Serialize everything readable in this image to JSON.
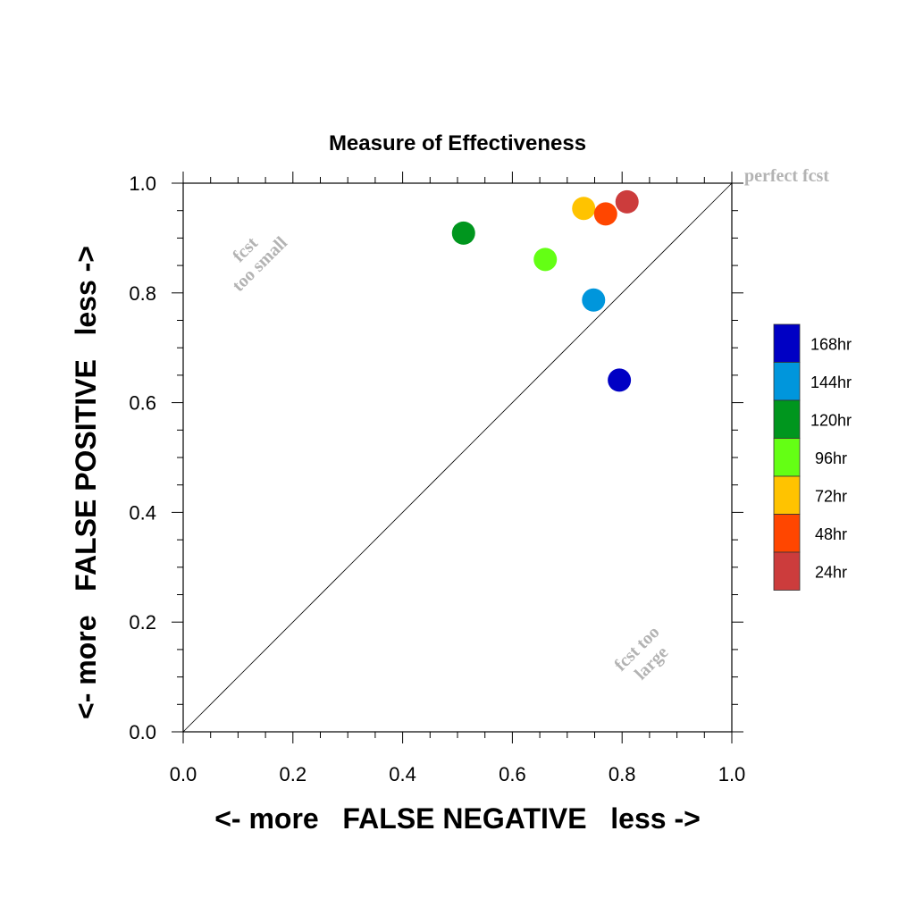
{
  "chart_data": {
    "type": "scatter",
    "title": "Measure of Effectiveness",
    "xlabel": "<- more   FALSE NEGATIVE   less ->",
    "ylabel": "<- more   FALSE POSITIVE   less ->",
    "xlim": [
      0,
      1
    ],
    "ylim": [
      0,
      1
    ],
    "xticks": [
      "0.0",
      "0.2",
      "0.4",
      "0.6",
      "0.8",
      "1.0"
    ],
    "yticks": [
      "0.0",
      "0.2",
      "0.4",
      "0.6",
      "0.8",
      "1.0"
    ],
    "grid": false,
    "legend_position": "right",
    "series": [
      {
        "name": "168hr",
        "color": "#0000c4",
        "x": 0.795,
        "y": 0.641
      },
      {
        "name": "144hr",
        "color": "#0096dc",
        "x": 0.748,
        "y": 0.787
      },
      {
        "name": "120hr",
        "color": "#00961e",
        "x": 0.511,
        "y": 0.909
      },
      {
        "name": "96hr",
        "color": "#64ff14",
        "x": 0.66,
        "y": 0.861
      },
      {
        "name": "72hr",
        "color": "#ffc300",
        "x": 0.73,
        "y": 0.954
      },
      {
        "name": "48hr",
        "color": "#ff4600",
        "x": 0.77,
        "y": 0.944
      },
      {
        "name": "24hr",
        "color": "#cc3c3c",
        "x": 0.809,
        "y": 0.966
      }
    ],
    "annotations": {
      "perfect": "perfect fcst",
      "small_line1": "fcst",
      "small_line2": "too small",
      "large_line1": "fcst too",
      "large_line2": "large"
    }
  }
}
